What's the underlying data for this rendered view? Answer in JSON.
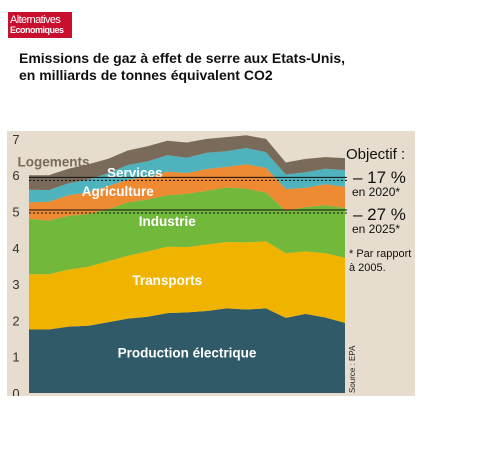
{
  "logo": {
    "line1": "Alternatives",
    "line2": "Economiques"
  },
  "title": "Emissions de gaz à effet de serre aux Etats-Unis, en milliards de tonnes équivalent CO2",
  "chart_data": {
    "type": "area",
    "stacked": true,
    "ylim": [
      0,
      7
    ],
    "yticks": [
      0,
      1,
      2,
      3,
      4,
      5,
      6,
      7
    ],
    "grid": false,
    "n_points": 17,
    "series": [
      {
        "name": "Production électrique",
        "color": "#305a68",
        "values": [
          1.75,
          1.75,
          1.83,
          1.85,
          1.95,
          2.05,
          2.1,
          2.2,
          2.22,
          2.26,
          2.33,
          2.3,
          2.33,
          2.07,
          2.18,
          2.08,
          1.93
        ]
      },
      {
        "name": "Transports",
        "color": "#f0b300",
        "values": [
          1.52,
          1.52,
          1.57,
          1.63,
          1.68,
          1.73,
          1.8,
          1.83,
          1.8,
          1.83,
          1.83,
          1.85,
          1.85,
          1.78,
          1.72,
          1.77,
          1.8
        ]
      },
      {
        "name": "Industrie",
        "color": "#72b83a",
        "values": [
          1.53,
          1.48,
          1.48,
          1.45,
          1.43,
          1.47,
          1.43,
          1.42,
          1.47,
          1.48,
          1.5,
          1.48,
          1.34,
          1.17,
          1.22,
          1.32,
          1.37
        ]
      },
      {
        "name": "Agriculture",
        "color": "#ed8a32",
        "values": [
          0.45,
          0.52,
          0.57,
          0.6,
          0.64,
          0.63,
          0.62,
          0.65,
          0.57,
          0.6,
          0.57,
          0.67,
          0.68,
          0.6,
          0.53,
          0.58,
          0.58
        ]
      },
      {
        "name": "Services",
        "color": "#4eb3bd",
        "values": [
          0.35,
          0.32,
          0.33,
          0.35,
          0.35,
          0.4,
          0.43,
          0.45,
          0.42,
          0.45,
          0.43,
          0.45,
          0.43,
          0.4,
          0.43,
          0.43,
          0.46
        ]
      },
      {
        "name": "Logements",
        "color": "#7a6a5a",
        "values": [
          0.4,
          0.41,
          0.4,
          0.42,
          0.4,
          0.4,
          0.42,
          0.4,
          0.42,
          0.38,
          0.39,
          0.35,
          0.37,
          0.33,
          0.37,
          0.32,
          0.33
        ]
      }
    ],
    "targets": [
      {
        "value": 5.9,
        "percent": "– 17 %",
        "year": "en 2020*"
      },
      {
        "value": 5.0,
        "percent": "– 27 %",
        "year": "en 2025*"
      }
    ],
    "annotations": {
      "objective": "Objectif :",
      "footnote_line1": "* Par rapport",
      "footnote_line2": "à 2005.",
      "source": "Source : EPA"
    }
  }
}
